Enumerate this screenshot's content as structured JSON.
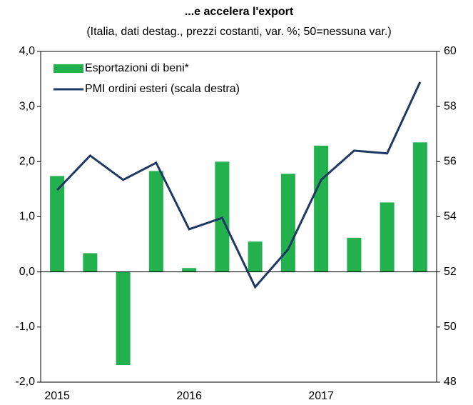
{
  "chart_data": {
    "type": "bar_line",
    "title": "...e accelera l'export",
    "subtitle": "(Italia, dati destag., prezzi costanti, var. %; 50=nessuna var.)",
    "categories": [
      "2015",
      null,
      null,
      null,
      "2016",
      null,
      null,
      null,
      "2017",
      null,
      null,
      null
    ],
    "series": [
      {
        "name": "Esportazioni di beni*",
        "type": "bar",
        "color": "#22b14c",
        "axis": "y",
        "values": [
          1.74,
          0.34,
          -1.69,
          1.83,
          0.07,
          2.0,
          0.55,
          1.78,
          2.29,
          0.62,
          1.26,
          2.35
        ]
      },
      {
        "name": "PMI ordini esteri (scala destra)",
        "type": "line",
        "color": "#1f3864",
        "axis": "y2",
        "values": [
          54.97,
          56.22,
          55.34,
          55.96,
          53.55,
          53.96,
          51.45,
          52.82,
          55.34,
          56.4,
          56.3,
          58.89
        ]
      }
    ],
    "ylim": [
      -2,
      4
    ],
    "yticks": [
      {
        "value": -2,
        "label": "-2,0"
      },
      {
        "value": -1,
        "label": "-1,0"
      },
      {
        "value": 0,
        "label": "0,0"
      },
      {
        "value": 1,
        "label": "1,0"
      },
      {
        "value": 2,
        "label": "2,0"
      },
      {
        "value": 3,
        "label": "3,0"
      },
      {
        "value": 4,
        "label": "4,0"
      }
    ],
    "y2lim": [
      48,
      60
    ],
    "y2ticks": [
      48,
      50,
      52,
      54,
      56,
      58,
      60
    ],
    "legend": "upper left"
  }
}
